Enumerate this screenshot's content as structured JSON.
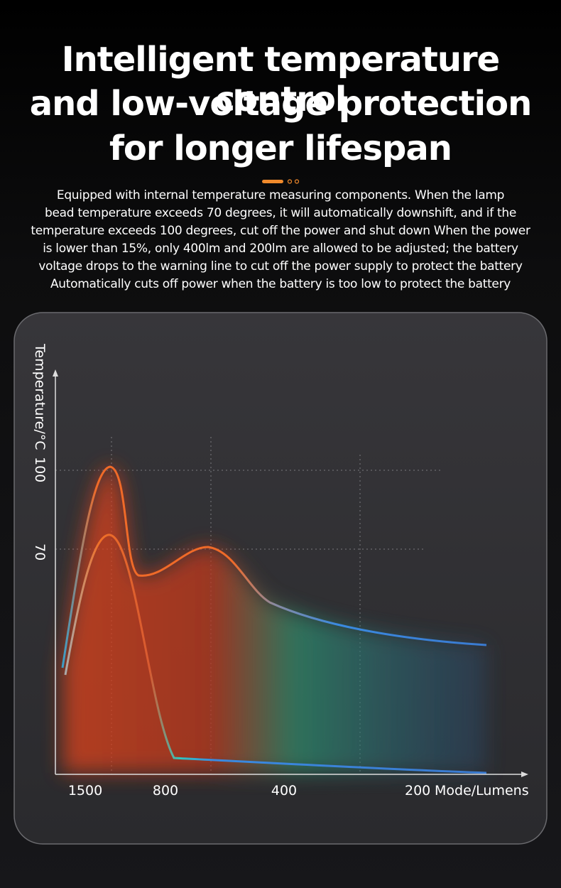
{
  "header": {
    "title_lines": [
      "Intelligent temperature control",
      "and low-voltage protection",
      "for longer lifespan"
    ]
  },
  "description": {
    "lines": [
      "Equipped with internal temperature measuring components. When the lamp",
      "bead temperature exceeds 70 degrees, it will automatically downshift, and if the",
      "temperature exceeds 100 degrees, cut off the power and shut down When the power",
      "is lower than 15%, only 400lm and 200lm are allowed to be adjusted; the battery",
      "voltage drops to the warning line to cut off the power supply to protect the battery",
      "Automatically cuts off power when the battery is too low to protect the battery"
    ]
  },
  "chart": {
    "y_axis_label": "Temperature/°C",
    "y_tick_labels": [
      "100",
      "70"
    ],
    "x_tick_labels": [
      "1500",
      "800",
      "400",
      "200"
    ],
    "x_axis_label": "Mode/Lumens"
  }
}
